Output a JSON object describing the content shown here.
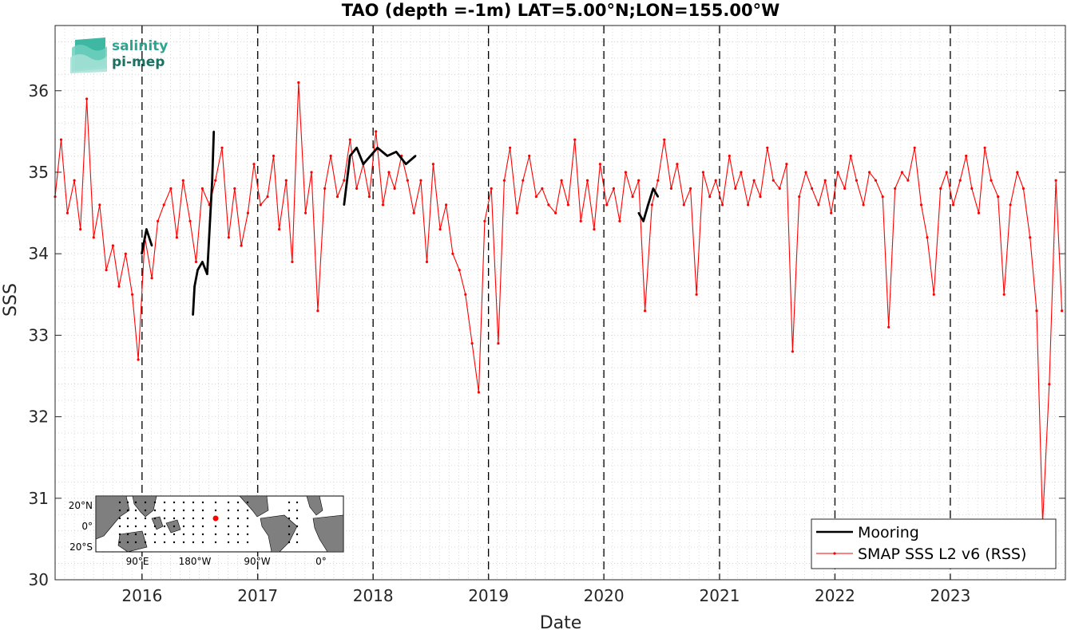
{
  "chart_data": {
    "type": "line",
    "title": "TAO (depth =-1m) LAT=5.00°N;LON=155.00°W",
    "xlabel": "Date",
    "ylabel": "SSS",
    "xlim": [
      "2015-04-01",
      "2023-12-31"
    ],
    "ylim": [
      30,
      36.8
    ],
    "x_ticks": [
      "2016",
      "2017",
      "2018",
      "2019",
      "2020",
      "2021",
      "2022",
      "2023"
    ],
    "y_ticks": [
      "30",
      "31",
      "32",
      "33",
      "34",
      "35",
      "36"
    ],
    "year_boundaries": [
      "2016-01-01",
      "2017-01-01",
      "2018-01-01",
      "2019-01-01",
      "2020-01-01",
      "2021-01-01",
      "2022-01-01",
      "2023-01-01"
    ],
    "grid": "dotted minor grid",
    "legend_position": "bottom-right",
    "series": [
      {
        "name": "Mooring",
        "color": "#000000",
        "style": "thick line",
        "x": [
          "2015-12-31",
          "2016-01-15",
          "2016-02-01",
          "2016-06-10",
          "2016-06-15",
          "2016-06-25",
          "2016-07-10",
          "2016-07-25",
          "2016-08-10",
          "2016-08-15",
          "2017-10-01",
          "2017-10-20",
          "2017-11-10",
          "2017-12-01",
          "2018-01-15",
          "2018-02-15",
          "2018-03-15",
          "2018-04-15",
          "2018-05-15",
          "2020-04-20",
          "2020-05-05",
          "2020-05-20",
          "2020-06-05",
          "2020-06-20"
        ],
        "y": [
          34.0,
          34.3,
          34.1,
          33.25,
          33.6,
          33.8,
          33.9,
          33.75,
          34.9,
          35.5,
          34.6,
          35.2,
          35.3,
          35.1,
          35.3,
          35.2,
          35.25,
          35.1,
          35.2,
          34.5,
          34.4,
          34.6,
          34.8,
          34.7
        ]
      },
      {
        "name": "SMAP SSS L2 v6 (RSS)",
        "color": "#ff0000",
        "style": "thin line with dot markers",
        "x": [
          "2015-04-01",
          "2015-04-20",
          "2015-05-10",
          "2015-06-01",
          "2015-06-20",
          "2015-07-10",
          "2015-08-01",
          "2015-08-20",
          "2015-09-10",
          "2015-10-01",
          "2015-10-20",
          "2015-11-10",
          "2015-12-01",
          "2015-12-20",
          "2016-01-10",
          "2016-02-01",
          "2016-02-20",
          "2016-03-10",
          "2016-04-01",
          "2016-04-20",
          "2016-05-10",
          "2016-06-01",
          "2016-06-20",
          "2016-07-10",
          "2016-08-01",
          "2016-08-20",
          "2016-09-10",
          "2016-10-01",
          "2016-10-20",
          "2016-11-10",
          "2016-12-01",
          "2016-12-20",
          "2017-01-10",
          "2017-02-01",
          "2017-02-20",
          "2017-03-10",
          "2017-04-01",
          "2017-04-20",
          "2017-05-10",
          "2017-06-01",
          "2017-06-20",
          "2017-07-10",
          "2017-08-01",
          "2017-08-20",
          "2017-09-10",
          "2017-10-01",
          "2017-10-20",
          "2017-11-10",
          "2017-12-01",
          "2017-12-20",
          "2018-01-10",
          "2018-02-01",
          "2018-02-20",
          "2018-03-10",
          "2018-04-01",
          "2018-04-20",
          "2018-05-10",
          "2018-06-01",
          "2018-06-20",
          "2018-07-10",
          "2018-08-01",
          "2018-08-20",
          "2018-09-10",
          "2018-10-01",
          "2018-10-20",
          "2018-11-10",
          "2018-12-01",
          "2018-12-20",
          "2019-01-10",
          "2019-02-01",
          "2019-02-20",
          "2019-03-10",
          "2019-04-01",
          "2019-04-20",
          "2019-05-10",
          "2019-06-01",
          "2019-06-20",
          "2019-07-10",
          "2019-08-01",
          "2019-08-20",
          "2019-09-10",
          "2019-10-01",
          "2019-10-20",
          "2019-11-10",
          "2019-12-01",
          "2019-12-20",
          "2020-01-10",
          "2020-02-01",
          "2020-02-20",
          "2020-03-10",
          "2020-04-01",
          "2020-04-20",
          "2020-05-10",
          "2020-06-01",
          "2020-06-20",
          "2020-07-10",
          "2020-08-01",
          "2020-08-20",
          "2020-09-10",
          "2020-10-01",
          "2020-10-20",
          "2020-11-10",
          "2020-12-01",
          "2020-12-20",
          "2021-01-10",
          "2021-02-01",
          "2021-02-20",
          "2021-03-10",
          "2021-04-01",
          "2021-04-20",
          "2021-05-10",
          "2021-06-01",
          "2021-06-20",
          "2021-07-10",
          "2021-08-01",
          "2021-08-20",
          "2021-09-10",
          "2021-10-01",
          "2021-10-20",
          "2021-11-10",
          "2021-12-01",
          "2021-12-20",
          "2022-01-10",
          "2022-02-01",
          "2022-02-20",
          "2022-03-10",
          "2022-04-01",
          "2022-04-20",
          "2022-05-10",
          "2022-06-01",
          "2022-06-20",
          "2022-07-10",
          "2022-08-01",
          "2022-08-20",
          "2022-09-10",
          "2022-10-01",
          "2022-10-20",
          "2022-11-10",
          "2022-12-01",
          "2022-12-20",
          "2023-01-10",
          "2023-02-01",
          "2023-02-20",
          "2023-03-10",
          "2023-04-01",
          "2023-04-20",
          "2023-05-10",
          "2023-06-01",
          "2023-06-20",
          "2023-07-10",
          "2023-08-01",
          "2023-08-20",
          "2023-09-10",
          "2023-10-01",
          "2023-10-20",
          "2023-11-10",
          "2023-12-01",
          "2023-12-20"
        ],
        "y": [
          34.7,
          35.4,
          34.5,
          34.9,
          34.3,
          35.9,
          34.2,
          34.6,
          33.8,
          34.1,
          33.6,
          34.0,
          33.5,
          32.7,
          34.2,
          33.7,
          34.4,
          34.6,
          34.8,
          34.2,
          34.9,
          34.4,
          33.9,
          34.8,
          34.6,
          34.9,
          35.3,
          34.2,
          34.8,
          34.1,
          34.5,
          35.1,
          34.6,
          34.7,
          35.2,
          34.3,
          34.9,
          33.9,
          36.1,
          34.5,
          35.0,
          33.3,
          34.8,
          35.2,
          34.7,
          34.9,
          35.4,
          34.8,
          35.1,
          34.7,
          35.5,
          34.6,
          35.0,
          34.8,
          35.2,
          34.9,
          34.5,
          34.9,
          33.9,
          35.1,
          34.3,
          34.6,
          34.0,
          33.8,
          33.5,
          32.9,
          32.3,
          34.4,
          34.8,
          32.9,
          34.9,
          35.3,
          34.5,
          34.9,
          35.2,
          34.7,
          34.8,
          34.6,
          34.5,
          34.9,
          34.6,
          35.4,
          34.4,
          34.9,
          34.3,
          35.1,
          34.6,
          34.8,
          34.4,
          35.0,
          34.7,
          34.9,
          33.3,
          34.6,
          34.9,
          35.4,
          34.8,
          35.1,
          34.6,
          34.8,
          33.5,
          35.0,
          34.7,
          34.9,
          34.6,
          35.2,
          34.8,
          35.0,
          34.6,
          34.9,
          34.7,
          35.3,
          34.9,
          34.8,
          35.1,
          32.8,
          34.7,
          35.0,
          34.8,
          34.6,
          34.9,
          34.5,
          35.0,
          34.8,
          35.2,
          34.9,
          34.6,
          35.0,
          34.9,
          34.7,
          33.1,
          34.8,
          35.0,
          34.9,
          35.3,
          34.6,
          34.2,
          33.5,
          34.8,
          35.0,
          34.6,
          34.9,
          35.2,
          34.8,
          34.5,
          35.3,
          34.9,
          34.7,
          33.5,
          34.6,
          35.0,
          34.8,
          34.2,
          33.3,
          30.7,
          32.4,
          34.9,
          33.3
        ]
      }
    ],
    "annotations": [
      "salinity",
      "pi-mep",
      "20°N",
      "0°",
      "20°S",
      "90°E",
      "180°W",
      "90°W",
      "0°"
    ]
  },
  "logo": {
    "line1": "salinity",
    "line2": "pi-mep",
    "primary_color": "#1f9e89",
    "secondary_color": "#2a7a6a"
  },
  "inset_map": {
    "lat_labels": [
      "20°N",
      "0°",
      "20°S"
    ],
    "lon_labels": [
      "90°E",
      "180°W",
      "90°W",
      "0°"
    ],
    "marker_color": "#ff0000",
    "land_color": "#7f7f7f"
  },
  "colors": {
    "mooring": "#000000",
    "smap": "#ff0000",
    "grid": "#cfcfcf"
  }
}
